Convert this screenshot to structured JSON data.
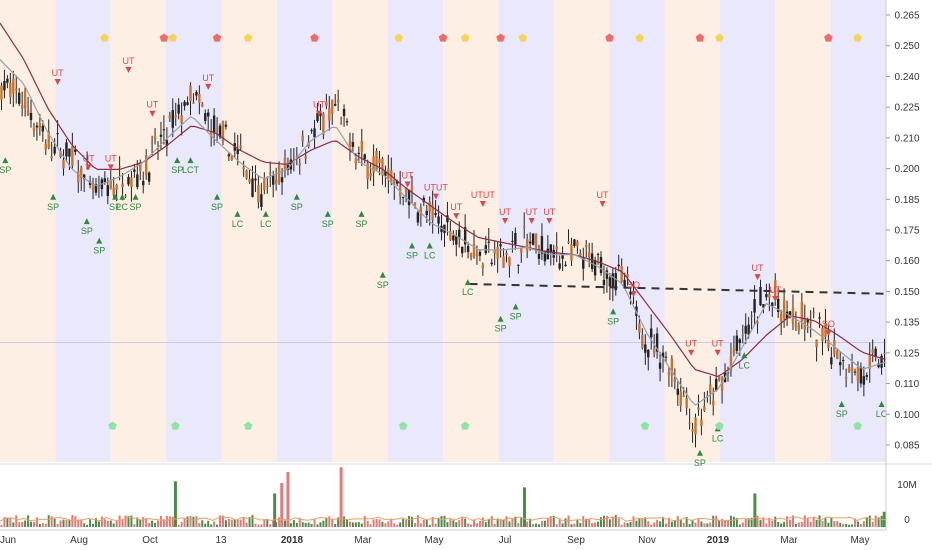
{
  "colors": {
    "band_blue": "#e9e9fb",
    "band_orange": "#fdefe3",
    "ma_red": "#8e2d48",
    "ma_gray": "#9aa0a6",
    "candle_up": "#222222",
    "candle_down": "#c8742e",
    "buy": "#2e8b3e",
    "sell": "#e04646",
    "dot_red": "#f06a6a",
    "dot_yellow": "#f6d35a",
    "dot_green": "#8fe3a3",
    "vol_green": "#4c8c4a",
    "vol_red": "#e27a7a",
    "vol_ma": "#f0a060"
  },
  "chart_data": {
    "type": "candlestick",
    "price_axis": {
      "ticks": [
        "0.265",
        "0.250",
        "0.240",
        "0.225",
        "0.210",
        "0.200",
        "0.185",
        "0.175",
        "0.160",
        "0.150",
        "0.135",
        "0.125",
        "0.110",
        "0.100",
        "0.085"
      ],
      "ylim": [
        0.08,
        0.267
      ]
    },
    "volume_axis": {
      "ticks": [
        "10M",
        "0"
      ]
    },
    "x_ticks": [
      {
        "label": "Jun",
        "bold": false
      },
      {
        "label": "Aug",
        "bold": false
      },
      {
        "label": "Oct",
        "bold": false
      },
      {
        "label": "13",
        "bold": false
      },
      {
        "label": "2018",
        "bold": true
      },
      {
        "label": "Mar",
        "bold": false
      },
      {
        "label": "May",
        "bold": false
      },
      {
        "label": "Jul",
        "bold": false
      },
      {
        "label": "Sep",
        "bold": false
      },
      {
        "label": "Nov",
        "bold": false
      },
      {
        "label": "2019",
        "bold": true
      },
      {
        "label": "Mar",
        "bold": false
      },
      {
        "label": "May",
        "bold": false
      }
    ],
    "band_colors": [
      "orange",
      "blue",
      "orange",
      "blue",
      "orange",
      "blue",
      "orange",
      "blue",
      "orange",
      "blue",
      "orange",
      "blue",
      "orange",
      "blue",
      "orange",
      "blue"
    ],
    "price_keypoints": [
      0.235,
      0.228,
      0.21,
      0.205,
      0.19,
      0.195,
      0.2,
      0.215,
      0.23,
      0.215,
      0.205,
      0.19,
      0.2,
      0.215,
      0.225,
      0.205,
      0.2,
      0.19,
      0.18,
      0.175,
      0.165,
      0.165,
      0.17,
      0.165,
      0.165,
      0.16,
      0.155,
      0.13,
      0.12,
      0.095,
      0.11,
      0.13,
      0.15,
      0.14,
      0.135,
      0.125,
      0.115,
      0.125
    ],
    "ma_slow_keypoints": [
      0.26,
      0.245,
      0.225,
      0.21,
      0.2,
      0.2,
      0.203,
      0.21,
      0.218,
      0.215,
      0.208,
      0.203,
      0.202,
      0.208,
      0.212,
      0.205,
      0.2,
      0.192,
      0.185,
      0.178,
      0.172,
      0.17,
      0.168,
      0.166,
      0.165,
      0.162,
      0.158,
      0.145,
      0.132,
      0.118,
      0.115,
      0.122,
      0.132,
      0.14,
      0.138,
      0.132,
      0.125,
      0.122
    ],
    "ma_fast_keypoints": [
      0.245,
      0.235,
      0.215,
      0.2,
      0.193,
      0.197,
      0.203,
      0.213,
      0.222,
      0.212,
      0.203,
      0.196,
      0.2,
      0.212,
      0.218,
      0.203,
      0.198,
      0.188,
      0.178,
      0.173,
      0.167,
      0.167,
      0.168,
      0.165,
      0.165,
      0.16,
      0.153,
      0.133,
      0.118,
      0.103,
      0.11,
      0.127,
      0.145,
      0.14,
      0.134,
      0.126,
      0.118,
      0.121
    ],
    "dashed_line": {
      "start": 0.153,
      "end": 0.149
    },
    "current_price_line": 0.129,
    "signals": [
      {
        "text": "SP",
        "type": "buy",
        "t": 0.006,
        "v": 0.205
      },
      {
        "text": "SP",
        "type": "buy",
        "t": 0.06,
        "v": 0.19
      },
      {
        "text": "SP",
        "type": "buy",
        "t": 0.098,
        "v": 0.18
      },
      {
        "text": "SP",
        "type": "buy",
        "t": 0.112,
        "v": 0.172
      },
      {
        "text": "SP",
        "type": "buy",
        "t": 0.13,
        "v": 0.19
      },
      {
        "text": "LC",
        "type": "buy",
        "t": 0.138,
        "v": 0.19
      },
      {
        "text": "SP",
        "type": "buy",
        "t": 0.153,
        "v": 0.19
      },
      {
        "text": "SP",
        "type": "buy",
        "t": 0.2,
        "v": 0.205
      },
      {
        "text": "LCT",
        "type": "buy",
        "t": 0.215,
        "v": 0.205
      },
      {
        "text": "SP",
        "type": "buy",
        "t": 0.245,
        "v": 0.19
      },
      {
        "text": "LC",
        "type": "buy",
        "t": 0.268,
        "v": 0.183
      },
      {
        "text": "LC",
        "type": "buy",
        "t": 0.3,
        "v": 0.183
      },
      {
        "text": "SP",
        "type": "buy",
        "t": 0.335,
        "v": 0.19
      },
      {
        "text": "SP",
        "type": "buy",
        "t": 0.37,
        "v": 0.183
      },
      {
        "text": "SP",
        "type": "buy",
        "t": 0.408,
        "v": 0.183
      },
      {
        "text": "SP",
        "type": "buy",
        "t": 0.432,
        "v": 0.158
      },
      {
        "text": "SP",
        "type": "buy",
        "t": 0.465,
        "v": 0.17
      },
      {
        "text": "LC",
        "type": "buy",
        "t": 0.485,
        "v": 0.17
      },
      {
        "text": "LC",
        "type": "buy",
        "t": 0.528,
        "v": 0.155
      },
      {
        "text": "SP",
        "type": "buy",
        "t": 0.565,
        "v": 0.14
      },
      {
        "text": "SP",
        "type": "buy",
        "t": 0.582,
        "v": 0.145
      },
      {
        "text": "SP",
        "type": "buy",
        "t": 0.692,
        "v": 0.143
      },
      {
        "text": "SP",
        "type": "buy",
        "t": 0.79,
        "v": 0.085
      },
      {
        "text": "LC",
        "type": "buy",
        "t": 0.81,
        "v": 0.095
      },
      {
        "text": "LC",
        "type": "buy",
        "t": 0.84,
        "v": 0.125
      },
      {
        "text": "SP",
        "type": "buy",
        "t": 0.95,
        "v": 0.105
      },
      {
        "text": "LC",
        "type": "buy",
        "t": 0.995,
        "v": 0.105
      },
      {
        "text": "UT",
        "type": "sell",
        "t": 0.065,
        "v": 0.235
      },
      {
        "text": "UT",
        "type": "sell",
        "t": 0.1,
        "v": 0.2
      },
      {
        "text": "UT",
        "type": "sell",
        "t": 0.125,
        "v": 0.2
      },
      {
        "text": "UT",
        "type": "sell",
        "t": 0.145,
        "v": 0.24
      },
      {
        "text": "UT",
        "type": "sell",
        "t": 0.172,
        "v": 0.222
      },
      {
        "text": "UT",
        "type": "sell",
        "t": 0.235,
        "v": 0.233
      },
      {
        "text": "UT",
        "type": "sell",
        "t": 0.36,
        "v": 0.222
      },
      {
        "text": "UT",
        "type": "sell",
        "t": 0.46,
        "v": 0.193
      },
      {
        "text": "UTUT",
        "type": "sell",
        "t": 0.492,
        "v": 0.188
      },
      {
        "text": "UT",
        "type": "sell",
        "t": 0.515,
        "v": 0.18
      },
      {
        "text": "UTUT",
        "type": "sell",
        "t": 0.545,
        "v": 0.185
      },
      {
        "text": "UT",
        "type": "sell",
        "t": 0.57,
        "v": 0.178
      },
      {
        "text": "UT",
        "type": "sell",
        "t": 0.6,
        "v": 0.178
      },
      {
        "text": "UT",
        "type": "sell",
        "t": 0.62,
        "v": 0.178
      },
      {
        "text": "UT",
        "type": "sell",
        "t": 0.68,
        "v": 0.185
      },
      {
        "text": "SO",
        "type": "sell",
        "t": 0.715,
        "v": 0.148
      },
      {
        "text": "UT",
        "type": "sell",
        "t": 0.78,
        "v": 0.124
      },
      {
        "text": "UT",
        "type": "sell",
        "t": 0.81,
        "v": 0.124
      },
      {
        "text": "UT",
        "type": "sell",
        "t": 0.855,
        "v": 0.155
      },
      {
        "text": "UT",
        "type": "sell",
        "t": 0.875,
        "v": 0.146
      },
      {
        "text": "SO",
        "type": "sell",
        "t": 0.935,
        "v": 0.132
      }
    ],
    "top_dots": [
      {
        "t": 0.118,
        "color": "yellow"
      },
      {
        "t": 0.185,
        "color": "red"
      },
      {
        "t": 0.195,
        "color": "yellow"
      },
      {
        "t": 0.245,
        "color": "red"
      },
      {
        "t": 0.28,
        "color": "yellow"
      },
      {
        "t": 0.355,
        "color": "red"
      },
      {
        "t": 0.45,
        "color": "yellow"
      },
      {
        "t": 0.5,
        "color": "red"
      },
      {
        "t": 0.525,
        "color": "yellow"
      },
      {
        "t": 0.565,
        "color": "red"
      },
      {
        "t": 0.59,
        "color": "yellow"
      },
      {
        "t": 0.688,
        "color": "red"
      },
      {
        "t": 0.722,
        "color": "yellow"
      },
      {
        "t": 0.79,
        "color": "red"
      },
      {
        "t": 0.812,
        "color": "yellow"
      },
      {
        "t": 0.935,
        "color": "red"
      },
      {
        "t": 0.968,
        "color": "yellow"
      }
    ],
    "bottom_dots": [
      0.127,
      0.198,
      0.28,
      0.455,
      0.525,
      0.728,
      0.812,
      0.968
    ],
    "volume_spikes": [
      {
        "t": 0.198,
        "v": 0.75,
        "color": "green"
      },
      {
        "t": 0.31,
        "v": 0.55,
        "color": "green"
      },
      {
        "t": 0.318,
        "v": 0.72,
        "color": "red"
      },
      {
        "t": 0.325,
        "v": 0.9,
        "color": "red"
      },
      {
        "t": 0.385,
        "v": 0.98,
        "color": "red"
      },
      {
        "t": 0.592,
        "v": 0.65,
        "color": "green"
      },
      {
        "t": 0.852,
        "v": 0.55,
        "color": "green"
      },
      {
        "t": 0.998,
        "v": 0.25,
        "color": "green"
      }
    ]
  }
}
